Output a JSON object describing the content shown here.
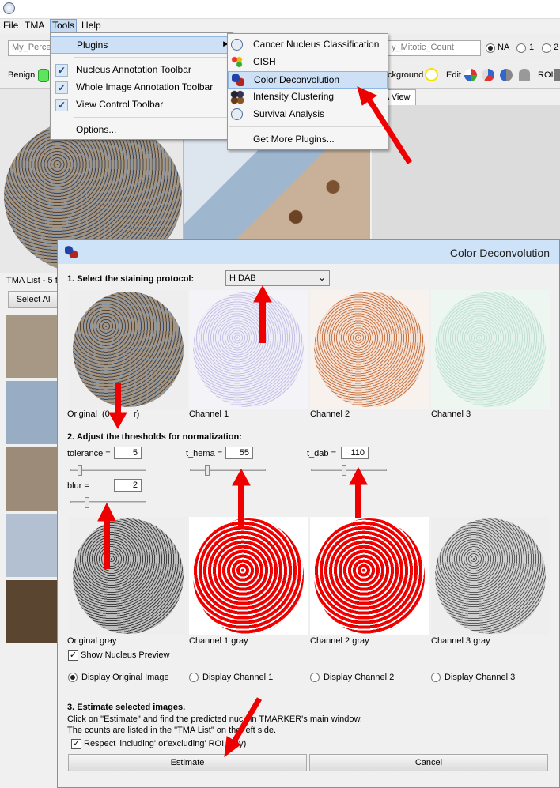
{
  "menubar": {
    "file": "File",
    "tma": "TMA",
    "tools": "Tools",
    "help": "Help"
  },
  "toolbar": {
    "percent_field": "My_Perce",
    "mitotic_field": "y_Mitotic_Count",
    "radio_na": "NA",
    "radio_1": "1",
    "radio_2": "2",
    "benign": "Benign",
    "background": "ckground",
    "edit": "Edit",
    "roi": "ROI"
  },
  "tools_menu": {
    "plugins": "Plugins",
    "nucleus_toolbar": "Nucleus Annotation Toolbar",
    "whole_image_toolbar": "Whole Image Annotation Toolbar",
    "view_control_toolbar": "View Control Toolbar",
    "options": "Options..."
  },
  "plugins_menu": {
    "cancer_nucleus": "Cancer Nucleus Classification",
    "cish": "CISH",
    "color_deconvolution": "Color Deconvolution",
    "intensity_clustering": "Intensity Clustering",
    "survival_analysis": "Survival Analysis",
    "get_more": "Get More Plugins..."
  },
  "tab_view": "A View",
  "tma_list": {
    "header": "TMA List - 5 f",
    "select_all": "Select Al"
  },
  "dialog": {
    "title": "Color Deconvolution",
    "step1": "1. Select the staining protocol:",
    "protocol": "H DAB",
    "channels": {
      "original": "Original  (0",
      "original_tail": "r)",
      "ch1": "Channel 1",
      "ch2": "Channel 2",
      "ch3": "Channel 3"
    },
    "step2": "2. Adjust the thresholds for normalization:",
    "tolerance_label": "tolerance =",
    "tolerance": "5",
    "t_hema_label": "t_hema =",
    "t_hema": "55",
    "t_dab_label": "t_dab =",
    "t_dab": "110",
    "blur_label": "blur =",
    "blur": "2",
    "gray": {
      "original": "Original gray",
      "ch1": "Channel 1 gray",
      "ch2": "Channel 2 gray",
      "ch3": "Channel 3 gray"
    },
    "show_preview": "Show Nucleus Preview",
    "display_original": "Display Original Image",
    "display_ch1": "Display Channel 1",
    "display_ch2": "Display Channel 2",
    "display_ch3": "Display Channel 3",
    "step3": "3. Estimate selected images.",
    "info1": "Click on \"Estimate\" and find the predicted nucl  in TMARKER's main window.",
    "info2": "The counts are listed in the \"TMA List\" on the  eft side.",
    "respect_roi": "Respect 'including' or'excluding' ROI (  ny)",
    "estimate": "Estimate",
    "cancel": "Cancel"
  },
  "colors": {
    "accent": "#5b9bd5",
    "highlight": "#cde0f5",
    "annotation_red": "#ee0000"
  }
}
